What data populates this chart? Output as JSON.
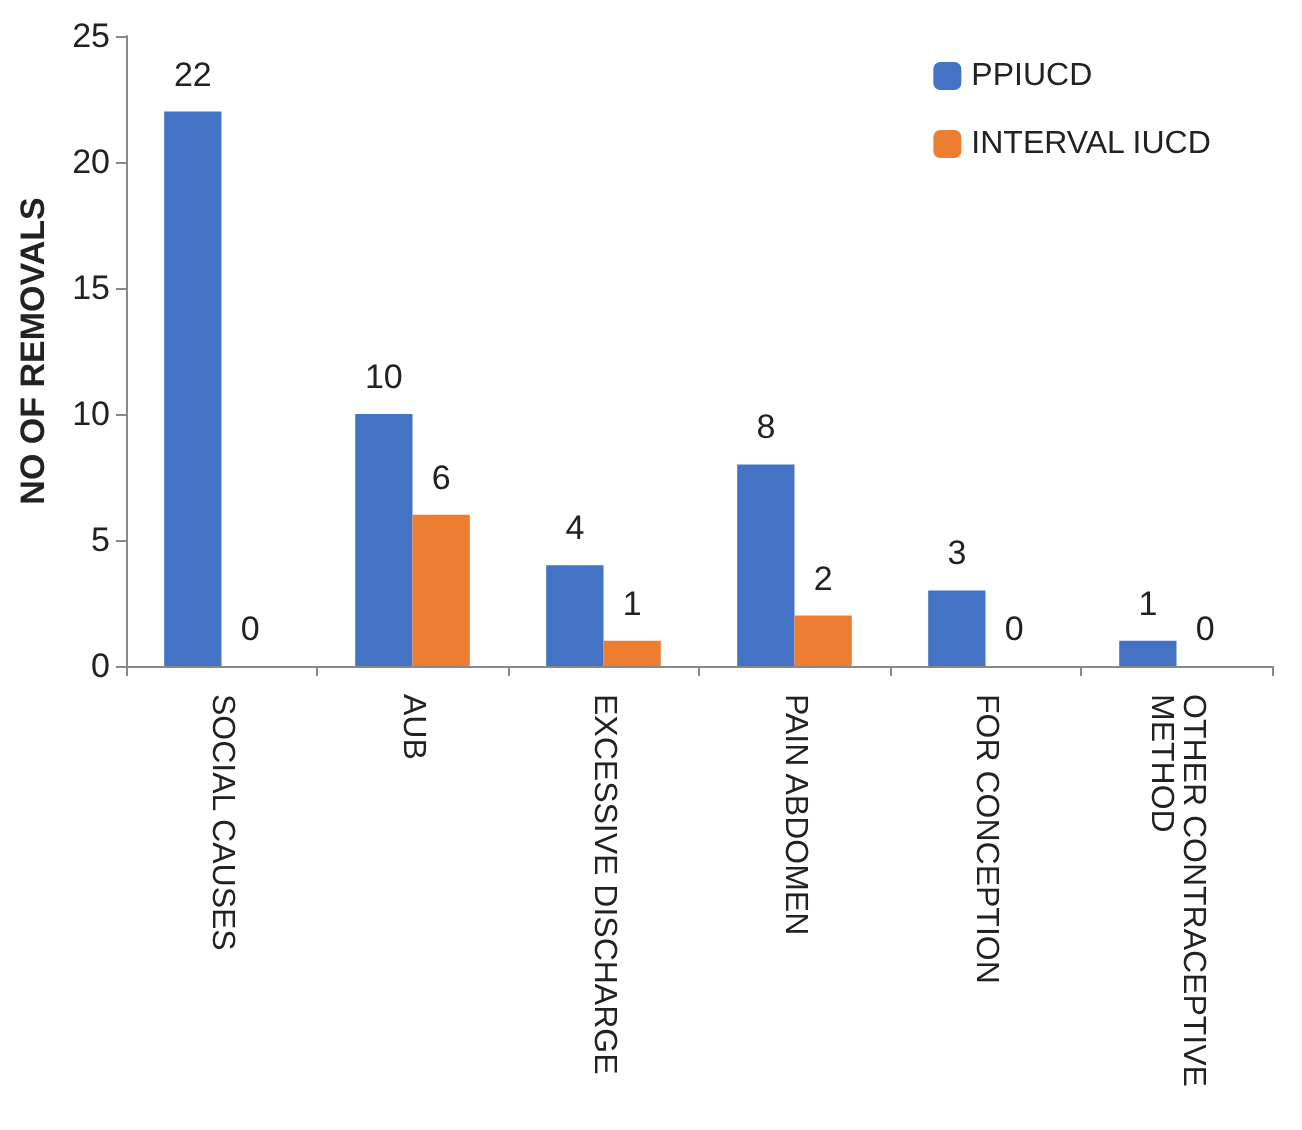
{
  "chart_data": {
    "type": "bar",
    "ylabel": "NO OF REMOVALS",
    "categories": [
      "SOCIAL CAUSES",
      "AUB",
      "EXCESSIVE DISCHARGE",
      "PAIN ABDOMEN",
      "FOR CONCEPTION",
      "OTHER CONTRACEPTIVE METHOD"
    ],
    "series": [
      {
        "name": "PPIUCD",
        "color": "#4472c4",
        "values": [
          22,
          10,
          4,
          8,
          3,
          1
        ]
      },
      {
        "name": "INTERVAL IUCD",
        "color": "#ed7d31",
        "values": [
          0,
          6,
          1,
          2,
          0,
          0
        ]
      }
    ],
    "ylim": [
      0,
      25
    ],
    "yticks": [
      0,
      5,
      10,
      15,
      20,
      25
    ],
    "grid": false,
    "legend": "top right",
    "data_labels": true
  }
}
